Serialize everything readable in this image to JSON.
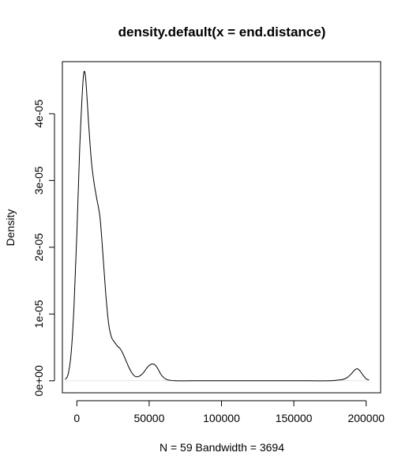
{
  "chart_data": {
    "type": "line",
    "title": "density.default(x = end.distance)",
    "xlabel": "N = 59   Bandwidth = 3694",
    "ylabel": "Density",
    "xlim": [
      -10000,
      210000
    ],
    "ylim": [
      -1.8e-06,
      4.78e-05
    ],
    "grid": false,
    "legend": "none",
    "colors": {
      "line": "#000000",
      "baseline": "#e6e6e6",
      "axis": "#000000",
      "background": "#ffffff"
    },
    "x_ticks": [
      {
        "value": 0,
        "label": "0"
      },
      {
        "value": 50000,
        "label": "50000"
      },
      {
        "value": 100000,
        "label": "100000"
      },
      {
        "value": 150000,
        "label": "150000"
      },
      {
        "value": 200000,
        "label": "200000"
      }
    ],
    "y_ticks": [
      {
        "value": 0,
        "label": "0e+00"
      },
      {
        "value": 1e-05,
        "label": "1e-05"
      },
      {
        "value": 2e-05,
        "label": "2e-05"
      },
      {
        "value": 3e-05,
        "label": "3e-05"
      },
      {
        "value": 4e-05,
        "label": "4e-05"
      }
    ],
    "series": [
      {
        "x": [
          -8000,
          -6000,
          -4000,
          -2000,
          0,
          2000,
          4000,
          5000,
          6000,
          7000,
          8000,
          10000,
          12000,
          14000,
          16000,
          18000,
          20000,
          22000,
          24000,
          26000,
          28000,
          30000,
          32000,
          34000,
          36000,
          38000,
          40000,
          42000,
          44000,
          46000,
          48000,
          50000,
          52000,
          54000,
          56000,
          58000,
          60000,
          62000,
          64000,
          68000,
          80000,
          100000,
          120000,
          140000,
          160000,
          175000,
          180000,
          184000,
          187000,
          190000,
          192000,
          194000,
          196000,
          198000,
          200000,
          202000
        ],
        "y": [
          2e-07,
          1e-06,
          4e-06,
          1.1e-05,
          2.2e-05,
          3.5e-05,
          4.4e-05,
          4.63e-05,
          4.55e-05,
          4.25e-05,
          3.9e-05,
          3.3e-05,
          2.95e-05,
          2.7e-05,
          2.45e-05,
          1.9e-05,
          1.3e-05,
          8.5e-06,
          6.5e-06,
          5.8e-06,
          5.2e-06,
          4.8e-06,
          4e-06,
          3e-06,
          2e-06,
          1.2e-06,
          7e-07,
          6e-07,
          8e-07,
          1.2e-06,
          1.8e-06,
          2.3e-06,
          2.5e-06,
          2.4e-06,
          1.8e-06,
          1e-06,
          5e-07,
          2e-07,
          1e-07,
          0.0,
          0.0,
          0.0,
          0.0,
          0.0,
          0.0,
          0.0,
          1e-07,
          2e-07,
          5e-07,
          1.1e-06,
          1.6e-06,
          1.8e-06,
          1.4e-06,
          8e-07,
          3e-07,
          1e-07
        ]
      }
    ]
  }
}
